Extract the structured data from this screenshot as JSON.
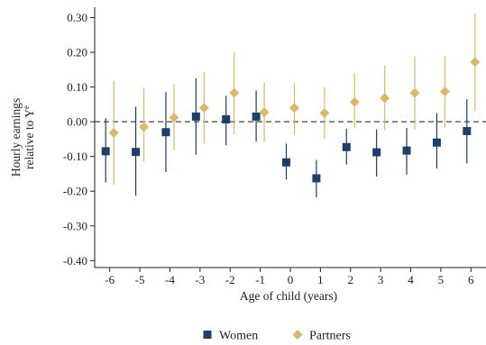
{
  "chart_data": {
    "type": "scatter",
    "xlabel": "Age of child (years)",
    "ylabel_lines": [
      "Hourly earnings",
      "relative to Y"
    ],
    "ylabel_superscript": "e",
    "x_ticks": [
      "-6",
      "-5",
      "-4",
      "-3",
      "-2",
      "-1",
      "0",
      "1",
      "2",
      "3",
      "4",
      "5",
      "6"
    ],
    "y_ticks": [
      "0.30",
      "0.20",
      "0.10",
      "0.00",
      "-0.10",
      "-0.20",
      "-0.30",
      "-0.40"
    ],
    "ylim": [
      -0.42,
      0.33
    ],
    "xlim": [
      -6.5,
      6.5
    ],
    "x": [
      -6,
      -5,
      -4,
      -3,
      -2,
      -1,
      0,
      1,
      2,
      3,
      4,
      5,
      6
    ],
    "reference_line": 0.0,
    "grid": false,
    "legend_position": "bottom",
    "series": [
      {
        "name": "Women",
        "marker": "square",
        "color": "#1f3f66",
        "values": [
          -0.085,
          -0.087,
          -0.03,
          0.015,
          0.007,
          0.015,
          -0.117,
          -0.163,
          -0.073,
          -0.088,
          -0.083,
          -0.06,
          -0.027
        ],
        "ci_low": [
          -0.175,
          -0.213,
          -0.145,
          -0.095,
          -0.068,
          -0.057,
          -0.167,
          -0.218,
          -0.123,
          -0.158,
          -0.152,
          -0.135,
          -0.12
        ],
        "ci_high": [
          0.01,
          0.043,
          0.085,
          0.125,
          0.075,
          0.09,
          -0.063,
          -0.11,
          -0.02,
          -0.022,
          -0.018,
          0.025,
          0.065
        ]
      },
      {
        "name": "Partners",
        "marker": "diamond",
        "color": "#d4bc6a",
        "values": [
          -0.032,
          -0.015,
          0.012,
          0.04,
          0.083,
          0.027,
          0.04,
          0.025,
          0.057,
          0.068,
          0.083,
          0.087,
          0.172
        ],
        "ci_low": [
          -0.182,
          -0.115,
          -0.082,
          -0.063,
          -0.037,
          -0.058,
          -0.038,
          -0.048,
          -0.018,
          -0.025,
          -0.022,
          -0.018,
          0.03
        ],
        "ci_high": [
          0.118,
          0.098,
          0.108,
          0.143,
          0.2,
          0.113,
          0.113,
          0.1,
          0.14,
          0.162,
          0.188,
          0.188,
          0.312
        ]
      }
    ]
  }
}
